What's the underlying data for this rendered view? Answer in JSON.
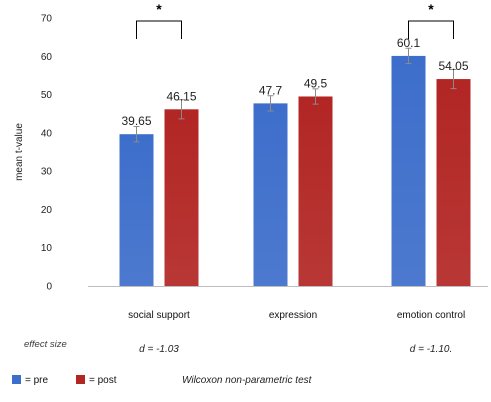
{
  "chart_data": {
    "type": "bar",
    "title": "",
    "xlabel": "",
    "ylabel": "mean t-value",
    "ylim": [
      0,
      70
    ],
    "yticks": [
      0,
      10,
      20,
      30,
      40,
      50,
      60,
      70
    ],
    "grid": false,
    "categories": [
      "social support",
      "expression",
      "emotion control"
    ],
    "series": [
      {
        "name": "pre",
        "color": "#3d6ecb",
        "values": [
          39.65,
          47.7,
          60.1
        ],
        "labels": [
          "39.65",
          "47.7",
          "60.1"
        ],
        "errors": [
          2,
          2,
          2
        ]
      },
      {
        "name": "post",
        "color": "#b22624",
        "values": [
          46.15,
          49.5,
          54.05
        ],
        "labels": [
          "46.15",
          "49.5",
          "54.05"
        ],
        "errors": [
          2.5,
          2,
          2.5
        ]
      }
    ],
    "significance": [
      {
        "category_index": 0,
        "marker": "*"
      },
      {
        "category_index": 2,
        "marker": "*"
      }
    ],
    "effect_size": {
      "title": "effect size",
      "values": [
        "d = -1.03",
        "",
        "d = -1.10."
      ]
    },
    "legend": {
      "placement": "bottom-left",
      "items": [
        {
          "symbol_color": "#3d6ecb",
          "label": "= pre"
        },
        {
          "symbol_color": "#b22624",
          "label": "= post"
        }
      ]
    },
    "note": "Wilcoxon non-parametric test"
  }
}
